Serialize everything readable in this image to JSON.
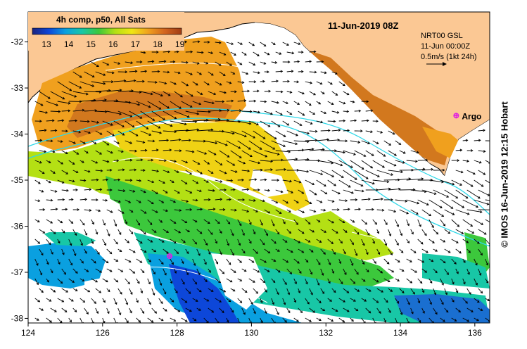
{
  "header": {
    "product": "4h comp, p50, All Sats",
    "datetime": "11-Jun-2019 08Z"
  },
  "colorbar": {
    "ticks": [
      "13",
      "14",
      "15",
      "16",
      "17",
      "18",
      "19"
    ],
    "colors": [
      "#1a237e",
      "#0d47d9",
      "#0aa0e0",
      "#18c7a6",
      "#3cc83c",
      "#b4e014",
      "#f0e614",
      "#f0a01e",
      "#d2641e",
      "#a03c14"
    ]
  },
  "current_info": {
    "model": "NRT00 GSL",
    "time": "11-Jun 00:00Z",
    "scale": "0.5m/s (1kt 24h)"
  },
  "markers": [
    {
      "label": "Argo",
      "lon": 135.5,
      "lat": -33.6
    },
    {
      "label": "",
      "lon": 127.8,
      "lat": -36.65
    }
  ],
  "axes": {
    "lon_ticks": [
      "124",
      "126",
      "128",
      "130",
      "132",
      "134",
      "136"
    ],
    "lat_ticks": [
      "-32",
      "-33",
      "-34",
      "-35",
      "-36",
      "-37",
      "-38"
    ],
    "lon_range": [
      124,
      136.4
    ],
    "lat_range": [
      -38.1,
      -31.35
    ]
  },
  "credit": "© IMOS 16-Jun-2019 12:15 Hobart",
  "colors": {
    "land": "#fbc894",
    "argo": "#e020e0",
    "isobath": "#2ed8e8"
  }
}
